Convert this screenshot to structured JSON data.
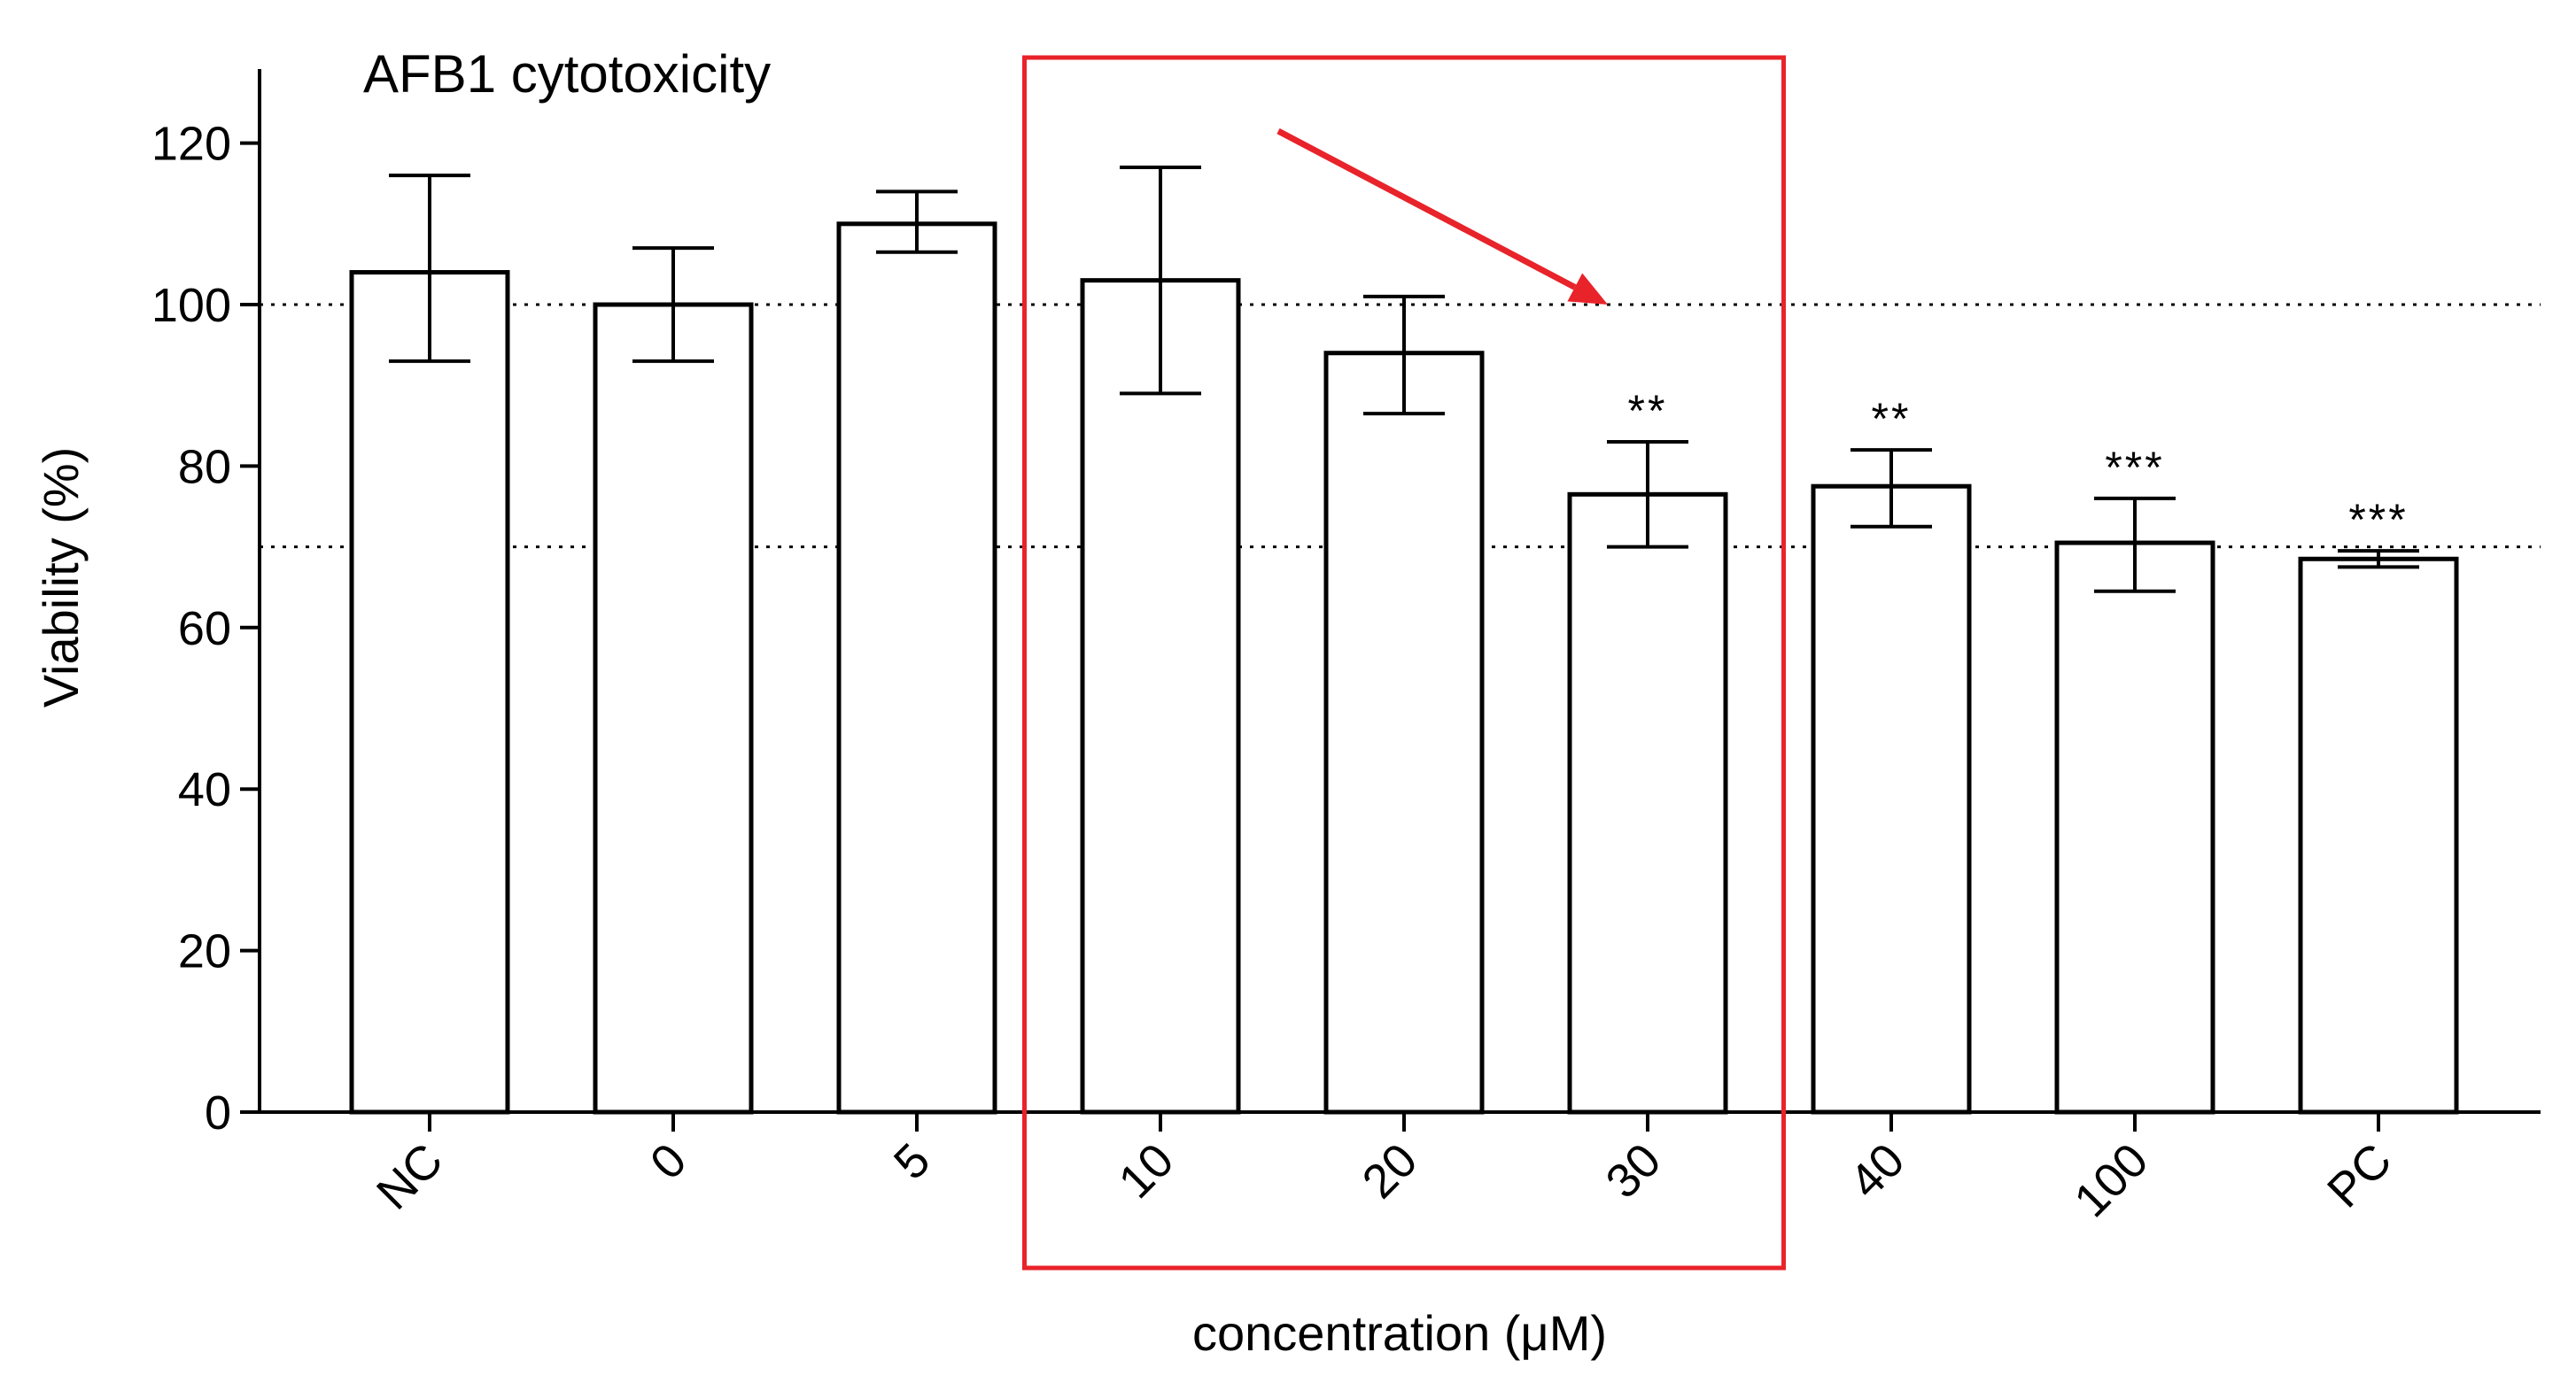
{
  "chart_data": {
    "type": "bar",
    "title": "AFB1 cytotoxicity",
    "xlabel": "concentration (μM)",
    "ylabel": "Viability (%)",
    "ylim": [
      0,
      130
    ],
    "yticks": [
      0,
      20,
      40,
      60,
      80,
      100,
      120
    ],
    "categories": [
      "NC",
      "0",
      "5",
      "10",
      "20",
      "30",
      "40",
      "100",
      "PC"
    ],
    "values": [
      104,
      100,
      110,
      103,
      94,
      76.5,
      77.5,
      70.5,
      68.5
    ],
    "error_low": [
      93,
      93,
      106.5,
      89,
      86.5,
      70,
      72.5,
      64.5,
      67.5
    ],
    "error_high": [
      116,
      107,
      114,
      117,
      101,
      83,
      82,
      76,
      69.5
    ],
    "significance": [
      "",
      "",
      "",
      "",
      "",
      "**",
      "**",
      "***",
      "***"
    ],
    "reference_lines": [
      100,
      70
    ],
    "highlight": {
      "categories": [
        "10",
        "20",
        "30"
      ],
      "color": "#e8232a",
      "arrow_target": {
        "category": "30",
        "value": 100
      }
    },
    "grid": false,
    "legend": "none"
  }
}
